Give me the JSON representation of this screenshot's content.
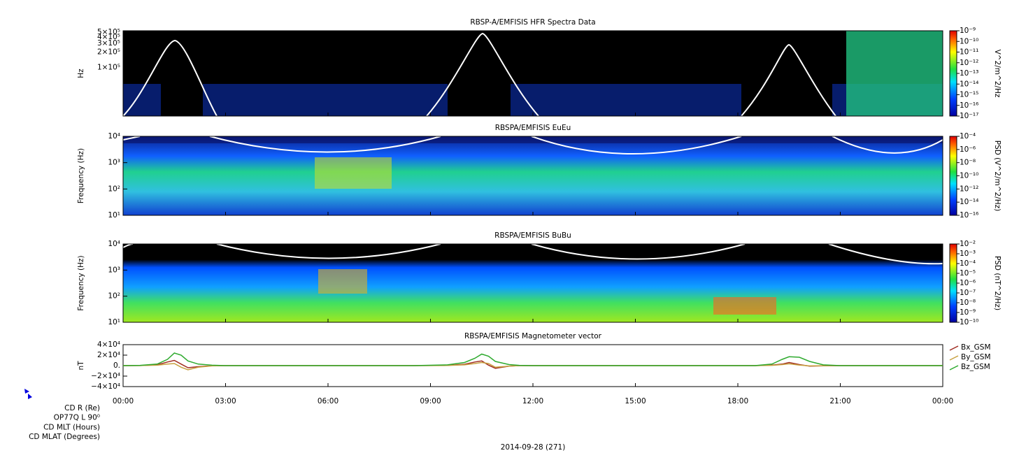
{
  "chart_data": [
    {
      "type": "spectrogram",
      "title": "RBSP-A/EMFISIS  HFR Spectra Data",
      "ylabel": "Hz",
      "log_y": true,
      "ylim": [
        11000,
        530000
      ],
      "yticks": [
        {
          "value": 500000,
          "label": "5×10⁵"
        },
        {
          "value": 400000,
          "label": "4×10⁵"
        },
        {
          "value": 300000,
          "label": "3×10⁵"
        },
        {
          "value": 200000,
          "label": "2×10⁵"
        },
        {
          "value": 100000,
          "label": "1×10⁵"
        }
      ],
      "colorbar": {
        "label": "V^2/m^2/Hz",
        "log": true,
        "lim": [
          1e-17,
          1e-09
        ],
        "ticks": [
          {
            "value": 1e-09,
            "label": "10⁻⁹"
          },
          {
            "value": 1e-10,
            "label": "10⁻¹⁰"
          },
          {
            "value": 1e-11,
            "label": "10⁻¹¹"
          },
          {
            "value": 1e-12,
            "label": "10⁻¹²"
          },
          {
            "value": 1e-13,
            "label": "10⁻¹³"
          },
          {
            "value": 1e-14,
            "label": "10⁻¹⁴"
          },
          {
            "value": 1e-15,
            "label": "10⁻¹⁵"
          },
          {
            "value": 1e-16,
            "label": "10⁻¹⁶"
          },
          {
            "value": 1e-17,
            "label": "10⁻¹⁷"
          }
        ]
      }
    },
    {
      "type": "spectrogram",
      "title": "RBSPA/EMFISIS  EuEu",
      "ylabel": "Frequency (Hz)",
      "log_y": true,
      "ylim": [
        10,
        10000
      ],
      "yticks": [
        {
          "value": 10000,
          "label": "10⁴"
        },
        {
          "value": 1000,
          "label": "10³"
        },
        {
          "value": 100,
          "label": "10²"
        },
        {
          "value": 10,
          "label": "10¹"
        }
      ],
      "colorbar": {
        "label": "PSD (V^2/m^2/Hz)",
        "log": true,
        "lim": [
          1e-16,
          0.0001
        ],
        "ticks": [
          {
            "value": 0.0001,
            "label": "10⁻⁴"
          },
          {
            "value": 1e-06,
            "label": "10⁻⁶"
          },
          {
            "value": 1e-08,
            "label": "10⁻⁸"
          },
          {
            "value": 1e-10,
            "label": "10⁻¹⁰"
          },
          {
            "value": 1e-12,
            "label": "10⁻¹²"
          },
          {
            "value": 1e-14,
            "label": "10⁻¹⁴"
          },
          {
            "value": 1e-16,
            "label": "10⁻¹⁶"
          }
        ]
      }
    },
    {
      "type": "spectrogram",
      "title": "RBSPA/EMFISIS  BuBu",
      "ylabel": "Frequency (Hz)",
      "log_y": true,
      "ylim": [
        10,
        10000
      ],
      "yticks": [
        {
          "value": 10000,
          "label": "10⁴"
        },
        {
          "value": 1000,
          "label": "10³"
        },
        {
          "value": 100,
          "label": "10²"
        },
        {
          "value": 10,
          "label": "10¹"
        }
      ],
      "colorbar": {
        "label": "PSD (nT^2/Hz)",
        "log": true,
        "lim": [
          1e-10,
          0.01
        ],
        "ticks": [
          {
            "value": 0.01,
            "label": "10⁻²"
          },
          {
            "value": 0.001,
            "label": "10⁻³"
          },
          {
            "value": 0.0001,
            "label": "10⁻⁴"
          },
          {
            "value": 1e-05,
            "label": "10⁻⁵"
          },
          {
            "value": 1e-06,
            "label": "10⁻⁶"
          },
          {
            "value": 1e-07,
            "label": "10⁻⁷"
          },
          {
            "value": 1e-08,
            "label": "10⁻⁸"
          },
          {
            "value": 1e-09,
            "label": "10⁻⁹"
          },
          {
            "value": 1e-10,
            "label": "10⁻¹⁰"
          }
        ]
      }
    },
    {
      "type": "line",
      "title": "RBSPA/EMFISIS  Magnetometer vector",
      "ylabel": "nT",
      "log_y": false,
      "ylim": [
        -40000,
        40000
      ],
      "yticks": [
        {
          "value": 40000,
          "label": "4×10⁴"
        },
        {
          "value": 20000,
          "label": "2×10⁴"
        },
        {
          "value": 0,
          "label": "0."
        },
        {
          "value": -20000,
          "label": "−2×10⁴"
        },
        {
          "value": -40000,
          "label": "−4×10⁴"
        }
      ],
      "x": [
        0,
        0.5,
        1,
        1.3,
        1.5,
        1.7,
        1.9,
        2.2,
        2.6,
        3,
        8.5,
        9.5,
        10,
        10.3,
        10.5,
        10.7,
        10.9,
        11.3,
        11.6,
        12,
        18.5,
        19,
        19.3,
        19.5,
        19.8,
        20.1,
        20.5,
        21,
        24
      ],
      "series": [
        {
          "name": "Bx_GSM",
          "color": "#a02c20",
          "values": [
            0,
            200,
            1500,
            7000,
            10000,
            3000,
            -4000,
            -2000,
            -300,
            0,
            0,
            500,
            2500,
            7000,
            9000,
            1000,
            -5000,
            -1000,
            0,
            0,
            0,
            1000,
            3000,
            6000,
            2000,
            -1000,
            -300,
            0,
            0
          ]
        },
        {
          "name": "By_GSM",
          "color": "#c8a040",
          "values": [
            0,
            100,
            800,
            3000,
            4000,
            -3000,
            -8000,
            -3000,
            -500,
            0,
            0,
            300,
            1500,
            4000,
            6000,
            4000,
            -3000,
            -1000,
            0,
            0,
            0,
            500,
            2000,
            3500,
            1000,
            -500,
            -200,
            0,
            0
          ]
        },
        {
          "name": "Bz_GSM",
          "color": "#2eaa2e",
          "values": [
            0,
            500,
            3000,
            12000,
            24000,
            20000,
            9000,
            3000,
            800,
            0,
            0,
            1500,
            6000,
            14000,
            22000,
            18000,
            8000,
            2000,
            500,
            0,
            0,
            3000,
            12000,
            17000,
            16000,
            8000,
            1500,
            0,
            0
          ]
        }
      ]
    }
  ],
  "x_axis": {
    "xlim": [
      0,
      24
    ],
    "xticks": [
      {
        "value": 0,
        "label": "00:00"
      },
      {
        "value": 3,
        "label": "03:00"
      },
      {
        "value": 6,
        "label": "06:00"
      },
      {
        "value": 9,
        "label": "09:00"
      },
      {
        "value": 12,
        "label": "12:00"
      },
      {
        "value": 15,
        "label": "15:00"
      },
      {
        "value": 18,
        "label": "18:00"
      },
      {
        "value": 21,
        "label": "21:00"
      },
      {
        "value": 24,
        "label": "00:00"
      }
    ],
    "xlabel": "2014-09-28 (271)"
  },
  "ephemeris_labels": [
    "CD R (Re)",
    "OP77Q L 90⁰",
    "CD MLT (Hours)",
    "CD MLAT (Degrees)"
  ]
}
